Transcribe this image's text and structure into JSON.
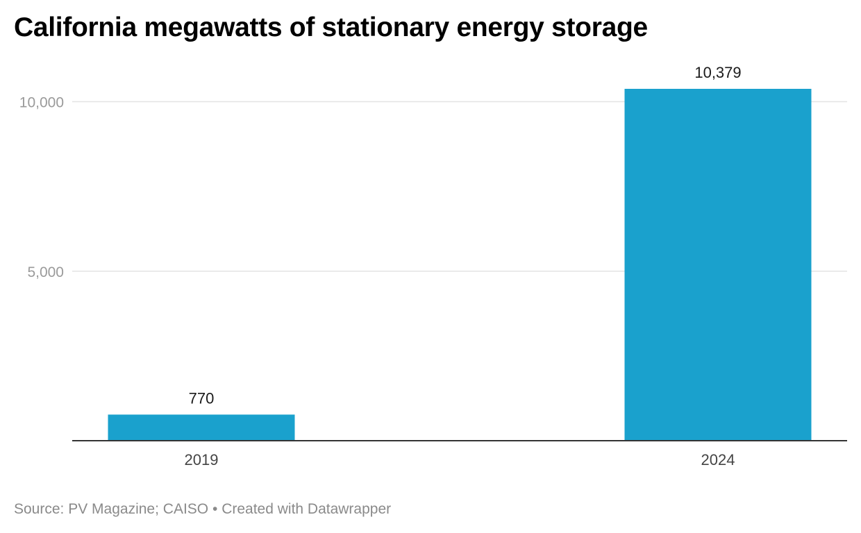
{
  "chart_data": {
    "type": "bar",
    "title": "California megawatts of stationary energy storage",
    "categories": [
      "2019",
      "2024"
    ],
    "values": [
      770,
      10379
    ],
    "value_labels": [
      "770",
      "10,379"
    ],
    "xlabel": "",
    "ylabel": "",
    "ylim": [
      0,
      10379
    ],
    "yticks": [
      {
        "value": 5000,
        "label": "5,000"
      },
      {
        "value": 10000,
        "label": "10,000"
      }
    ],
    "grid": true,
    "legend": "none",
    "bar_color": "#1aa1cd"
  },
  "footer": {
    "source": "Source: PV Magazine; CAISO",
    "separator": "•",
    "credit": "Created with Datawrapper"
  }
}
